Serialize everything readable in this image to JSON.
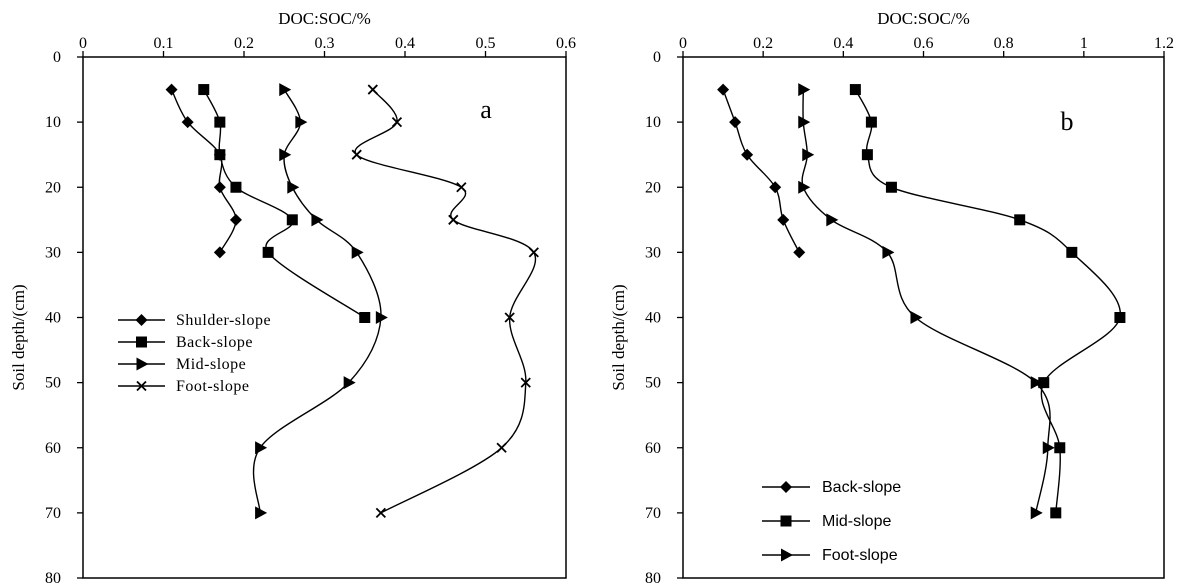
{
  "chart_data": [
    {
      "type": "line",
      "panel_label": "a",
      "xlabel": "DOC:SOC/%",
      "ylabel": "Soil depth/(cm)",
      "xlim": [
        0,
        0.6
      ],
      "ylim": [
        0,
        80
      ],
      "x_ticks": [
        "0",
        "0.1",
        "0.2",
        "0.3",
        "0.4",
        "0.5",
        "0.6"
      ],
      "y_ticks": [
        "0",
        "10",
        "20",
        "30",
        "40",
        "50",
        "60",
        "70",
        "80"
      ],
      "y_inverted": true,
      "x_axis_position": "top",
      "legend_position": "middle-left",
      "series": [
        {
          "name": "Shulder-slope",
          "marker": "diamond",
          "depth": [
            5,
            10,
            15,
            20,
            25,
            30
          ],
          "values": [
            0.11,
            0.13,
            0.17,
            0.17,
            0.19,
            0.17
          ]
        },
        {
          "name": "Back-slope",
          "marker": "square",
          "depth": [
            5,
            10,
            15,
            20,
            25,
            30,
            40
          ],
          "values": [
            0.15,
            0.17,
            0.17,
            0.19,
            0.26,
            0.23,
            0.35
          ]
        },
        {
          "name": "Mid-slope",
          "marker": "triangle",
          "depth": [
            5,
            10,
            15,
            20,
            25,
            30,
            40,
            50,
            60,
            70
          ],
          "values": [
            0.25,
            0.27,
            0.25,
            0.26,
            0.29,
            0.34,
            0.37,
            0.33,
            0.22,
            0.22
          ]
        },
        {
          "name": "Foot-slope",
          "marker": "x",
          "depth": [
            5,
            10,
            15,
            20,
            25,
            30,
            40,
            50,
            60,
            70
          ],
          "values": [
            0.36,
            0.39,
            0.34,
            0.47,
            0.46,
            0.56,
            0.53,
            0.55,
            0.52,
            0.37
          ]
        }
      ]
    },
    {
      "type": "line",
      "panel_label": "b",
      "xlabel": "DOC:SOC/%",
      "ylabel": "Soil depth/(cm)",
      "xlim": [
        0,
        1.2
      ],
      "ylim": [
        0,
        80
      ],
      "x_ticks": [
        "0",
        "0.2",
        "0.4",
        "0.6",
        "0.8",
        "1",
        "1.2"
      ],
      "y_ticks": [
        "0",
        "10",
        "20",
        "30",
        "40",
        "50",
        "60",
        "70",
        "80"
      ],
      "y_inverted": true,
      "x_axis_position": "top",
      "legend_position": "bottom-left",
      "series": [
        {
          "name": "Back-slope",
          "marker": "diamond",
          "depth": [
            5,
            10,
            15,
            20,
            25,
            30
          ],
          "values": [
            0.1,
            0.13,
            0.16,
            0.23,
            0.25,
            0.29
          ]
        },
        {
          "name": "Mid-slope",
          "marker": "square",
          "depth": [
            5,
            10,
            15,
            20,
            25,
            30,
            40,
            50,
            60,
            70
          ],
          "values": [
            0.43,
            0.47,
            0.46,
            0.52,
            0.84,
            0.97,
            1.09,
            0.9,
            0.94,
            0.93
          ]
        },
        {
          "name": "Foot-slope",
          "marker": "triangle",
          "depth": [
            5,
            10,
            15,
            20,
            25,
            30,
            40,
            50,
            60,
            70
          ],
          "values": [
            0.3,
            0.3,
            0.31,
            0.3,
            0.37,
            0.51,
            0.58,
            0.88,
            0.91,
            0.88
          ]
        }
      ]
    }
  ]
}
